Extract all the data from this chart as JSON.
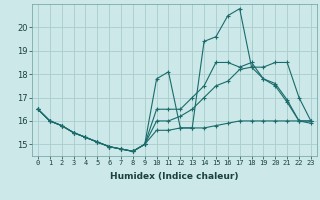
{
  "xlabel": "Humidex (Indice chaleur)",
  "ylabel": "",
  "background_color": "#cce8e8",
  "grid_color": "#aacccc",
  "line_color": "#1a6b6b",
  "xlim": [
    -0.5,
    23.5
  ],
  "ylim": [
    14.5,
    21.0
  ],
  "xticks": [
    0,
    1,
    2,
    3,
    4,
    5,
    6,
    7,
    8,
    9,
    10,
    11,
    12,
    13,
    14,
    15,
    16,
    17,
    18,
    19,
    20,
    21,
    22,
    23
  ],
  "yticks": [
    15,
    16,
    17,
    18,
    19,
    20
  ],
  "series1_x": [
    0,
    1,
    2,
    3,
    4,
    5,
    6,
    7,
    8,
    9,
    10,
    11,
    12,
    13,
    14,
    15,
    16,
    17,
    18,
    19,
    20,
    21,
    22,
    23
  ],
  "series1_y": [
    16.5,
    16.0,
    15.8,
    15.5,
    15.3,
    15.1,
    14.9,
    14.8,
    14.7,
    15.0,
    15.6,
    15.6,
    15.7,
    15.7,
    15.7,
    15.8,
    15.9,
    16.0,
    16.0,
    16.0,
    16.0,
    16.0,
    16.0,
    16.0
  ],
  "series2_x": [
    0,
    1,
    2,
    3,
    4,
    5,
    6,
    7,
    8,
    9,
    10,
    11,
    12,
    13,
    14,
    15,
    16,
    17,
    18,
    19,
    20,
    21,
    22,
    23
  ],
  "series2_y": [
    16.5,
    16.0,
    15.8,
    15.5,
    15.3,
    15.1,
    14.9,
    14.8,
    14.7,
    15.0,
    17.8,
    18.1,
    15.7,
    15.7,
    19.4,
    19.6,
    20.5,
    20.8,
    18.3,
    18.3,
    18.5,
    18.5,
    17.0,
    16.0
  ],
  "series3_x": [
    0,
    1,
    2,
    3,
    4,
    5,
    6,
    7,
    8,
    9,
    10,
    11,
    12,
    13,
    14,
    15,
    16,
    17,
    18,
    19,
    20,
    21,
    22,
    23
  ],
  "series3_y": [
    16.5,
    16.0,
    15.8,
    15.5,
    15.3,
    15.1,
    14.9,
    14.8,
    14.7,
    15.0,
    16.5,
    16.5,
    16.5,
    17.0,
    17.5,
    18.5,
    18.5,
    18.3,
    18.5,
    17.8,
    17.5,
    16.8,
    16.0,
    16.0
  ],
  "series4_x": [
    0,
    1,
    2,
    3,
    4,
    5,
    6,
    7,
    8,
    9,
    10,
    11,
    12,
    13,
    14,
    15,
    16,
    17,
    18,
    19,
    20,
    21,
    22,
    23
  ],
  "series4_y": [
    16.5,
    16.0,
    15.8,
    15.5,
    15.3,
    15.1,
    14.9,
    14.8,
    14.7,
    15.0,
    16.0,
    16.0,
    16.2,
    16.5,
    17.0,
    17.5,
    17.7,
    18.2,
    18.3,
    17.8,
    17.6,
    16.9,
    16.0,
    15.9
  ]
}
